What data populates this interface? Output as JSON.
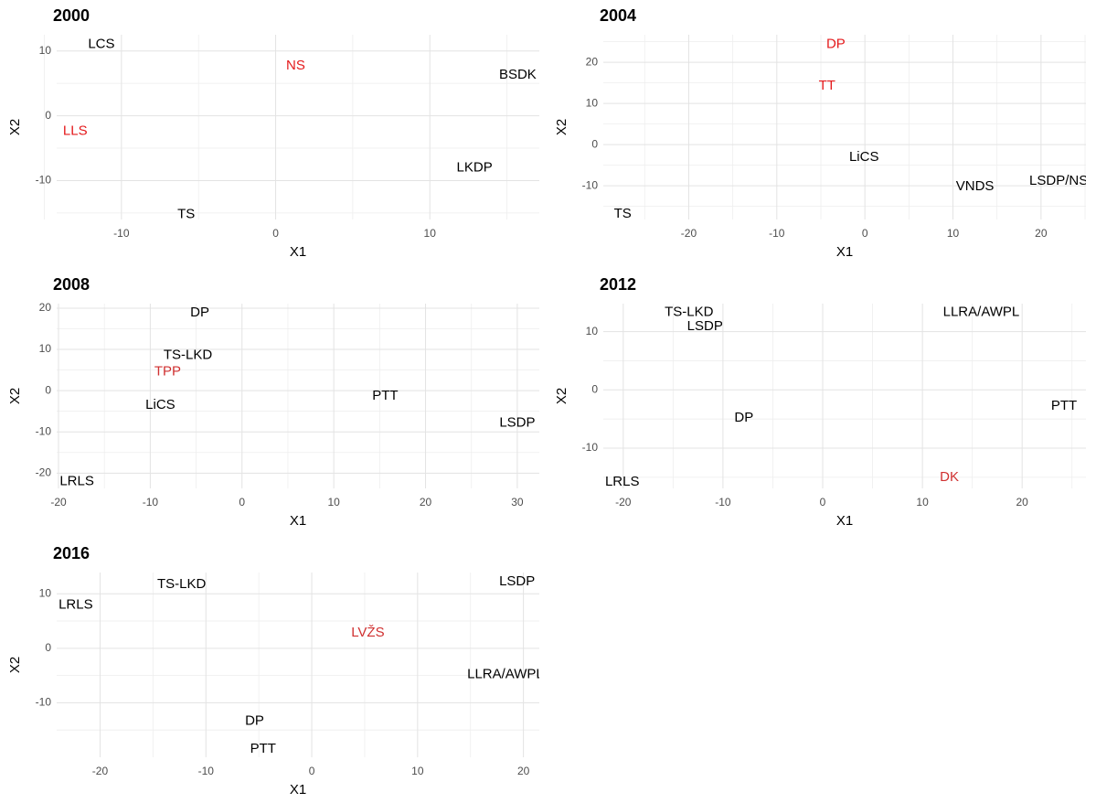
{
  "chart_data": [
    {
      "type": "scatter",
      "title": "2000",
      "x_label": "X1",
      "y_label": "X2",
      "xlim": [
        -14.2,
        17.1
      ],
      "ylim": [
        -16,
        12.5
      ],
      "xticks": [
        -10,
        0,
        10
      ],
      "yticks": [
        -10,
        0,
        10
      ],
      "minor_xticks": [
        -15,
        -5,
        5,
        15
      ],
      "minor_yticks": [
        -15,
        -5,
        5
      ],
      "grid": true,
      "labels": [
        "LCS",
        "NS",
        "BSDK",
        "LLS",
        "LKDP",
        "TS"
      ],
      "x": [
        -11.3,
        1.3,
        15.7,
        -13.0,
        12.9,
        -5.8
      ],
      "y": [
        11.0,
        7.7,
        6.3,
        -2.4,
        -8.0,
        -15.2
      ],
      "colors": [
        "#000000",
        "#e41a1c",
        "#000000",
        "#e41a1c",
        "#000000",
        "#000000"
      ]
    },
    {
      "type": "scatter",
      "title": "2004",
      "x_label": "X1",
      "y_label": "X2",
      "xlim": [
        -29.7,
        25.1
      ],
      "ylim": [
        -18.2,
        26.7
      ],
      "xticks": [
        -20,
        -10,
        0,
        10,
        20
      ],
      "yticks": [
        -10,
        0,
        10,
        20
      ],
      "minor_xticks": [
        -25,
        -15,
        -5,
        5,
        15,
        25
      ],
      "minor_yticks": [
        -15,
        -5,
        5,
        15,
        25
      ],
      "grid": true,
      "labels": [
        "DP",
        "TT",
        "LiCS",
        "VNDS",
        "LSDP/NS",
        "TS"
      ],
      "x": [
        -3.3,
        -4.3,
        -0.1,
        12.5,
        22.0,
        -27.5
      ],
      "y": [
        24.4,
        14.2,
        -3.1,
        -10.2,
        -8.9,
        -16.9
      ],
      "colors": [
        "#e41a1c",
        "#e41a1c",
        "#000000",
        "#000000",
        "#000000",
        "#000000"
      ]
    },
    {
      "type": "scatter",
      "title": "2008",
      "x_label": "X1",
      "y_label": "X2",
      "xlim": [
        -20.2,
        32.4
      ],
      "ylim": [
        -23.7,
        21.1
      ],
      "xticks": [
        -20,
        -10,
        0,
        10,
        20,
        30
      ],
      "yticks": [
        -20,
        -10,
        0,
        10,
        20
      ],
      "minor_xticks": [
        -15,
        -5,
        5,
        15,
        25
      ],
      "minor_yticks": [
        -15,
        -5,
        5,
        15
      ],
      "grid": true,
      "labels": [
        "DP",
        "TS-LKD",
        "TPP",
        "LiCS",
        "PTT",
        "LSDP",
        "LRLS"
      ],
      "x": [
        -4.6,
        -5.9,
        -8.1,
        -8.9,
        15.6,
        30.0,
        -18.0
      ],
      "y": [
        18.9,
        8.6,
        4.6,
        -3.5,
        -1.3,
        -7.9,
        -22.0
      ],
      "colors": [
        "#000000",
        "#000000",
        "#d03030",
        "#000000",
        "#000000",
        "#000000",
        "#000000"
      ]
    },
    {
      "type": "scatter",
      "title": "2012",
      "x_label": "X1",
      "y_label": "X2",
      "xlim": [
        -22.0,
        26.4
      ],
      "ylim": [
        -16.9,
        14.8
      ],
      "xticks": [
        -20,
        -10,
        0,
        10,
        20
      ],
      "yticks": [
        -10,
        0,
        10
      ],
      "minor_xticks": [
        -15,
        -5,
        5,
        15,
        25
      ],
      "minor_yticks": [
        -15,
        -5,
        5
      ],
      "grid": true,
      "labels": [
        "TS-LKD",
        "LSDP",
        "LLRA/AWPL",
        "PTT",
        "DP",
        "LRLS",
        "DK"
      ],
      "x": [
        -13.4,
        -11.8,
        15.9,
        24.2,
        -7.9,
        -20.1,
        12.7
      ],
      "y": [
        13.3,
        10.9,
        13.3,
        -2.8,
        -4.8,
        -15.8,
        -15.0
      ],
      "colors": [
        "#000000",
        "#000000",
        "#000000",
        "#000000",
        "#000000",
        "#000000",
        "#d03030"
      ]
    },
    {
      "type": "scatter",
      "title": "2016",
      "x_label": "X1",
      "y_label": "X2",
      "xlim": [
        -24.1,
        21.5
      ],
      "ylim": [
        -20.0,
        13.9
      ],
      "xticks": [
        -20,
        -10,
        0,
        10,
        20
      ],
      "yticks": [
        -10,
        0,
        10
      ],
      "minor_xticks": [
        -15,
        -5,
        5,
        15
      ],
      "minor_yticks": [
        -15,
        -5,
        5
      ],
      "grid": true,
      "labels": [
        "TS-LKD",
        "LSDP",
        "LRLS",
        "LVŽS",
        "LLRA/AWPL",
        "DP",
        "PTT"
      ],
      "x": [
        -12.3,
        19.4,
        -22.3,
        5.3,
        18.3,
        -5.4,
        -4.6
      ],
      "y": [
        11.7,
        12.2,
        7.9,
        2.8,
        -4.8,
        -13.4,
        -18.5
      ],
      "colors": [
        "#000000",
        "#000000",
        "#000000",
        "#d03030",
        "#000000",
        "#000000",
        "#000000"
      ]
    }
  ]
}
